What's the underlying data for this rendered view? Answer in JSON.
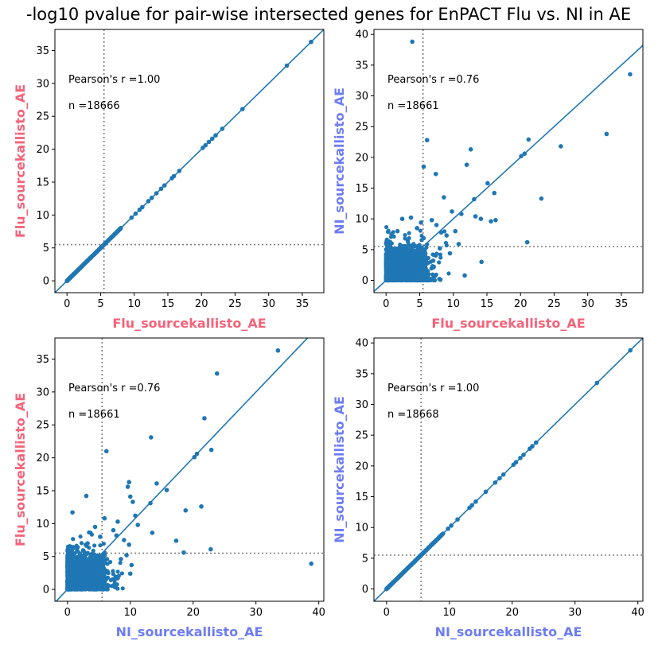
{
  "figure": {
    "title": "-log10 pvalue for pair-wise intersected genes for EnPACT Flu vs. NI in AE"
  },
  "colors": {
    "flu_label": "#f5637a",
    "ni_label": "#6d7cf5",
    "points": "#1f77b4",
    "line": "#1f77b4",
    "threshold": "#7f7f7f"
  },
  "chart_data": [
    {
      "type": "scatter",
      "xlabel": "Flu_sourcekallisto_AE",
      "ylabel": "Flu_sourcekallisto_AE",
      "xlabel_color": "flu",
      "ylabel_color": "flu",
      "xlim": [
        -1.8,
        38.2
      ],
      "ylim": [
        -1.8,
        38.2
      ],
      "xticks": [
        0,
        5,
        10,
        15,
        20,
        25,
        30,
        35
      ],
      "yticks": [
        0,
        5,
        10,
        15,
        20,
        25,
        30,
        35
      ],
      "threshold": 5.5,
      "annotations": {
        "pearson": "Pearson's r =1.00",
        "n": "n =18666"
      },
      "diagonal": true,
      "bulk_points": 700,
      "bulk_range": [
        0,
        8
      ],
      "bulk_spread": 0,
      "points": [
        [
          9.6,
          9.6
        ],
        [
          10.2,
          10.2
        ],
        [
          10.8,
          10.8
        ],
        [
          11.2,
          11.2
        ],
        [
          12.1,
          12.1
        ],
        [
          12.6,
          12.6
        ],
        [
          13.3,
          13.3
        ],
        [
          14.0,
          14.0
        ],
        [
          14.5,
          14.5
        ],
        [
          15.6,
          15.6
        ],
        [
          15.9,
          15.9
        ],
        [
          16.7,
          16.7
        ],
        [
          20.2,
          20.2
        ],
        [
          20.6,
          20.6
        ],
        [
          21.1,
          21.1
        ],
        [
          21.6,
          21.6
        ],
        [
          22.1,
          22.1
        ],
        [
          23.1,
          23.1
        ],
        [
          26.1,
          26.1
        ],
        [
          32.7,
          32.7
        ],
        [
          36.3,
          36.3
        ]
      ]
    },
    {
      "type": "scatter",
      "xlabel": "Flu_sourcekallisto_AE",
      "ylabel": "NI_sourcekallisto_AE",
      "xlabel_color": "flu",
      "ylabel_color": "ni",
      "xlim": [
        -1.8,
        38.2
      ],
      "ylim": [
        -2.0,
        40.8
      ],
      "xticks": [
        0,
        5,
        10,
        15,
        20,
        25,
        30,
        35
      ],
      "yticks": [
        0,
        5,
        10,
        15,
        20,
        25,
        30,
        35,
        40
      ],
      "threshold": 5.5,
      "annotations": {
        "pearson": "Pearson's r =0.76",
        "n": "n =18661"
      },
      "diagonal": true,
      "bulk_points": 1500,
      "bulk_range": [
        0,
        6
      ],
      "bulk_spread": 4,
      "points": [
        [
          3.9,
          38.8
        ],
        [
          6.1,
          22.8
        ],
        [
          5.6,
          18.5
        ],
        [
          7.4,
          17.3
        ],
        [
          8.6,
          13.5
        ],
        [
          3.7,
          10.2
        ],
        [
          2.4,
          10.0
        ],
        [
          4.6,
          8.5
        ],
        [
          1.7,
          8.0
        ],
        [
          0.8,
          7.5
        ],
        [
          5.2,
          9.4
        ],
        [
          6.8,
          9.8
        ],
        [
          7.5,
          9.0
        ],
        [
          8.2,
          7.8
        ],
        [
          9.0,
          7.3
        ],
        [
          9.8,
          11.2
        ],
        [
          10.3,
          8.0
        ],
        [
          11.2,
          10.8
        ],
        [
          12.0,
          18.8
        ],
        [
          12.6,
          21.3
        ],
        [
          13.1,
          13.2
        ],
        [
          13.3,
          10.4
        ],
        [
          14.1,
          10.0
        ],
        [
          15.1,
          15.8
        ],
        [
          15.6,
          9.6
        ],
        [
          16.3,
          9.8
        ],
        [
          16.1,
          14.2
        ],
        [
          20.1,
          20.2
        ],
        [
          20.6,
          20.6
        ],
        [
          21.2,
          22.9
        ],
        [
          21.0,
          6.2
        ],
        [
          23.1,
          13.3
        ],
        [
          26.0,
          21.8
        ],
        [
          32.8,
          23.8
        ],
        [
          36.3,
          33.5
        ],
        [
          14.2,
          3.0
        ],
        [
          11.7,
          0.8
        ],
        [
          6.2,
          1.5
        ],
        [
          7.0,
          3.2
        ],
        [
          9.5,
          4.4
        ],
        [
          8.0,
          5.2
        ],
        [
          10.8,
          5.9
        ]
      ]
    },
    {
      "type": "scatter",
      "xlabel": "NI_sourcekallisto_AE",
      "ylabel": "Flu_sourcekallisto_AE",
      "xlabel_color": "ni",
      "ylabel_color": "flu",
      "xlim": [
        -2.0,
        40.8
      ],
      "ylim": [
        -1.8,
        38.2
      ],
      "xticks": [
        0,
        10,
        20,
        30,
        40
      ],
      "yticks": [
        0,
        5,
        10,
        15,
        20,
        25,
        30,
        35
      ],
      "threshold": 5.5,
      "annotations": {
        "pearson": "Pearson's r =0.76",
        "n": "n =18661"
      },
      "diagonal": true,
      "bulk_points": 1500,
      "bulk_range": [
        0,
        6
      ],
      "bulk_spread": 4,
      "points": [
        [
          38.8,
          3.9
        ],
        [
          22.8,
          6.1
        ],
        [
          18.5,
          5.6
        ],
        [
          17.3,
          7.4
        ],
        [
          13.5,
          8.6
        ],
        [
          10.2,
          3.7
        ],
        [
          10.0,
          2.4
        ],
        [
          8.5,
          4.6
        ],
        [
          8.0,
          1.7
        ],
        [
          7.5,
          0.8
        ],
        [
          9.4,
          5.2
        ],
        [
          9.8,
          6.8
        ],
        [
          9.0,
          7.5
        ],
        [
          7.8,
          8.2
        ],
        [
          7.3,
          9.0
        ],
        [
          11.2,
          9.8
        ],
        [
          8.0,
          10.3
        ],
        [
          10.8,
          11.2
        ],
        [
          18.8,
          12.0
        ],
        [
          21.3,
          12.6
        ],
        [
          13.2,
          13.1
        ],
        [
          10.4,
          13.3
        ],
        [
          10.0,
          14.1
        ],
        [
          15.8,
          15.1
        ],
        [
          9.6,
          15.6
        ],
        [
          9.8,
          16.3
        ],
        [
          14.2,
          16.1
        ],
        [
          20.2,
          20.1
        ],
        [
          20.6,
          20.6
        ],
        [
          22.9,
          21.2
        ],
        [
          6.2,
          21.0
        ],
        [
          13.3,
          23.1
        ],
        [
          21.8,
          26.0
        ],
        [
          23.8,
          32.8
        ],
        [
          33.5,
          36.3
        ],
        [
          3.0,
          14.2
        ],
        [
          0.8,
          11.7
        ],
        [
          1.5,
          6.2
        ],
        [
          3.2,
          7.0
        ],
        [
          4.4,
          9.5
        ],
        [
          5.2,
          8.0
        ],
        [
          5.9,
          10.8
        ]
      ]
    },
    {
      "type": "scatter",
      "xlabel": "NI_sourcekallisto_AE",
      "ylabel": "NI_sourcekallisto_AE",
      "xlabel_color": "ni",
      "ylabel_color": "ni",
      "xlim": [
        -2.0,
        40.8
      ],
      "ylim": [
        -2.0,
        40.8
      ],
      "xticks": [
        0,
        10,
        20,
        30,
        40
      ],
      "yticks": [
        0,
        5,
        10,
        15,
        20,
        25,
        30,
        35,
        40
      ],
      "threshold": 5.5,
      "annotations": {
        "pearson": "Pearson's r =1.00",
        "n": "n =18668"
      },
      "diagonal": true,
      "bulk_points": 700,
      "bulk_range": [
        0,
        9
      ],
      "bulk_spread": 0,
      "points": [
        [
          9.8,
          9.8
        ],
        [
          10.3,
          10.3
        ],
        [
          11.3,
          11.3
        ],
        [
          13.2,
          13.2
        ],
        [
          13.6,
          13.6
        ],
        [
          14.2,
          14.2
        ],
        [
          15.8,
          15.8
        ],
        [
          17.3,
          17.3
        ],
        [
          18.0,
          18.0
        ],
        [
          18.6,
          18.6
        ],
        [
          20.2,
          20.2
        ],
        [
          20.6,
          20.6
        ],
        [
          21.3,
          21.3
        ],
        [
          21.8,
          21.8
        ],
        [
          22.8,
          22.8
        ],
        [
          23.2,
          23.2
        ],
        [
          23.8,
          23.8
        ],
        [
          33.5,
          33.5
        ],
        [
          38.8,
          38.8
        ]
      ]
    }
  ]
}
